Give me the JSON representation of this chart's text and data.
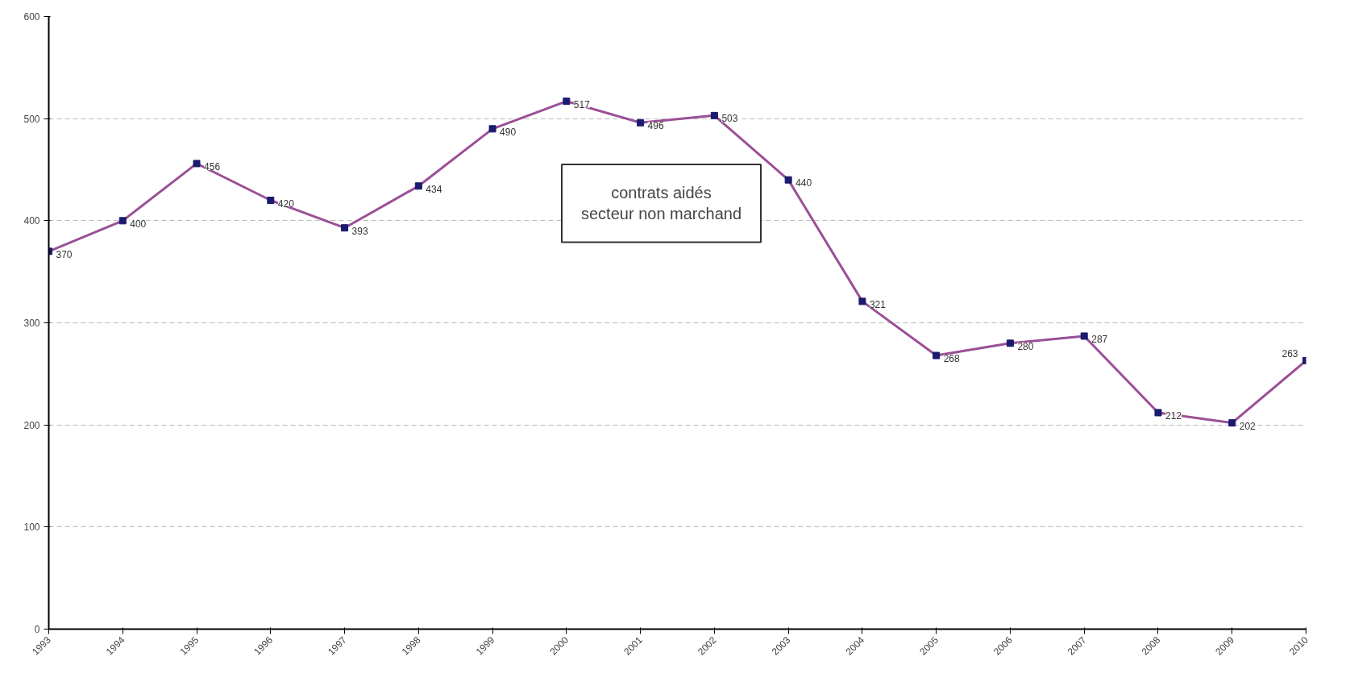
{
  "chart_data": {
    "type": "line",
    "categories": [
      "1993",
      "1994",
      "1995",
      "1996",
      "1997",
      "1998",
      "1999",
      "2000",
      "2001",
      "2002",
      "2003",
      "2004",
      "2005",
      "2006",
      "2007",
      "2008",
      "2009",
      "2010"
    ],
    "series": [
      {
        "color": "#9b4f96",
        "values": [
          370,
          400,
          456,
          420,
          393,
          434,
          490,
          517,
          496,
          503,
          440,
          321,
          268,
          280,
          287,
          212,
          202,
          263
        ]
      }
    ],
    "ylim": [
      0,
      600
    ],
    "yticks": [
      0,
      100,
      200,
      300,
      400,
      500,
      600
    ],
    "grid": "y",
    "marker": "square",
    "line_style": "solid",
    "data_labels": true,
    "annotations": [
      "contrats aidés\nsecteur non marchand"
    ]
  }
}
